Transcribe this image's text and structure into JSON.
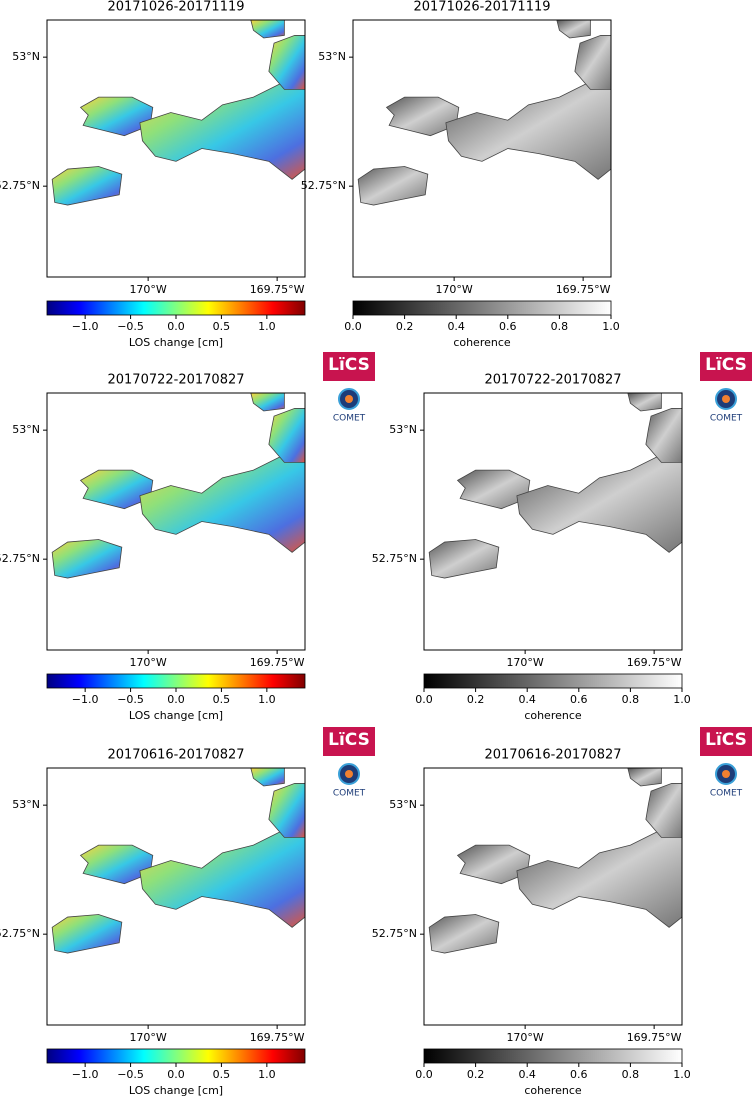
{
  "map_axes": {
    "xlim": [
      -170.196,
      -169.696
    ],
    "ylim": [
      52.574,
      53.072
    ],
    "xticks": [
      {
        "value": -170,
        "label": "170°W"
      },
      {
        "value": -169.75,
        "label": "169.75°W"
      }
    ],
    "yticks": [
      {
        "value": 53,
        "label": "53°N"
      },
      {
        "value": 52.75,
        "label": "52.75°N"
      }
    ]
  },
  "colorbars": {
    "los": {
      "label": "LOS change [cm]",
      "colormap": "jet",
      "lim": [
        -1.42,
        1.42
      ],
      "ticks": [
        {
          "value": -1,
          "label": "−1.0"
        },
        {
          "value": -0.5,
          "label": "−0.5"
        },
        {
          "value": 0,
          "label": "0.0"
        },
        {
          "value": 0.5,
          "label": "0.5"
        },
        {
          "value": 1,
          "label": "1.0"
        }
      ]
    },
    "coherence": {
      "label": "coherence",
      "colormap": "gray",
      "lim": [
        0,
        1
      ],
      "ticks": [
        {
          "value": 0,
          "label": "0.0"
        },
        {
          "value": 0.2,
          "label": "0.2"
        },
        {
          "value": 0.4,
          "label": "0.4"
        },
        {
          "value": 0.6,
          "label": "0.6"
        },
        {
          "value": 0.8,
          "label": "0.8"
        },
        {
          "value": 1,
          "label": "1.0"
        }
      ]
    }
  },
  "logo": {
    "title": "LïCS",
    "subtitle": "COMET"
  },
  "panels": [
    {
      "title": "20171026-20171119",
      "colorbar": "los",
      "logo": false
    },
    {
      "title": "20171026-20171119",
      "colorbar": "coherence",
      "logo": false
    },
    {
      "title": "20170722-20170827",
      "colorbar": "los",
      "logo": true
    },
    {
      "title": "20170722-20170827",
      "colorbar": "coherence",
      "logo": true
    },
    {
      "title": "20170616-20170827",
      "colorbar": "los",
      "logo": true
    },
    {
      "title": "20170616-20170827",
      "colorbar": "coherence",
      "logo": true
    }
  ]
}
